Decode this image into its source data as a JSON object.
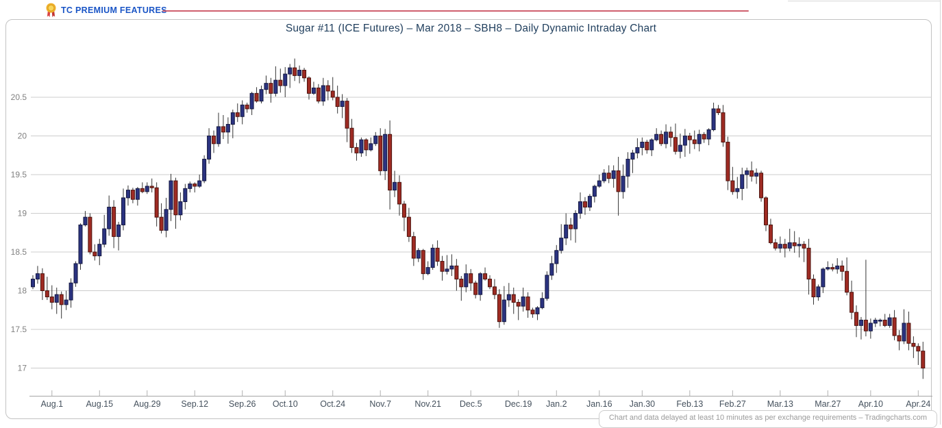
{
  "theme": {
    "premium-blue": "#1a55c6",
    "accent-line": "#cf5f6d",
    "title-navy": "#1e3d5c",
    "frame-border": "#c2c2c2",
    "grid": "#cccccc",
    "axis": "#a5a5a5",
    "tick": "#b0b0b0",
    "x-label": "#44505c",
    "y-label": "#808080",
    "footer-gray": "#9a9a9a",
    "up-fill": "#2b3380",
    "up-stroke": "#141840",
    "down-fill": "#9e2b23",
    "down-stroke": "#4c120d",
    "wick": "#333333"
  },
  "header": {
    "premium_label": "TC PREMIUM FEATURES",
    "badge_icon": "medal-icon"
  },
  "chart": {
    "title": "Sugar #11 (ICE Futures) – Mar 2018 – SBH8 – Daily Dynamic Intraday Chart",
    "footer_note": "Chart and data delayed at least 10 minutes as per exchange requirements – Tradingcharts.com"
  },
  "chart_data": {
    "type": "candlestick",
    "title": "Sugar #11 (ICE Futures) – Mar 2018 – SBH8 – Daily Dynamic Intraday Chart",
    "xlabel": "",
    "ylabel": "",
    "ylim": [
      16.64,
      21.0
    ],
    "grid": "horizontal",
    "up_color": "#2b3380",
    "down_color": "#9e2b23",
    "y_ticks": [
      {
        "label": "20.5",
        "value": 20.5
      },
      {
        "label": "20",
        "value": 20.0
      },
      {
        "label": "19.5",
        "value": 19.5
      },
      {
        "label": "19",
        "value": 19.0
      },
      {
        "label": "18.5",
        "value": 18.5
      },
      {
        "label": "18",
        "value": 18.0
      },
      {
        "label": "17.5",
        "value": 17.5
      },
      {
        "label": "17",
        "value": 17.0
      }
    ],
    "x_ticks": [
      {
        "label": "Aug.1",
        "index": 4
      },
      {
        "label": "Aug.15",
        "index": 14
      },
      {
        "label": "Aug.29",
        "index": 24
      },
      {
        "label": "Sep.12",
        "index": 34
      },
      {
        "label": "Sep.26",
        "index": 44
      },
      {
        "label": "Oct.10",
        "index": 53
      },
      {
        "label": "Oct.24",
        "index": 63
      },
      {
        "label": "Nov.7",
        "index": 73
      },
      {
        "label": "Nov.21",
        "index": 83
      },
      {
        "label": "Dec.5",
        "index": 92
      },
      {
        "label": "Dec.19",
        "index": 102
      },
      {
        "label": "Jan.2",
        "index": 110
      },
      {
        "label": "Jan.16",
        "index": 119
      },
      {
        "label": "Jan.30",
        "index": 128
      },
      {
        "label": "Feb.13",
        "index": 138
      },
      {
        "label": "Feb.27",
        "index": 147
      },
      {
        "label": "Mar.13",
        "index": 157
      },
      {
        "label": "Mar.27",
        "index": 167
      },
      {
        "label": "Apr.10",
        "index": 176
      },
      {
        "label": "Apr.24",
        "index": 186
      }
    ],
    "first_open": 18.05,
    "closes": [
      18.15,
      18.22,
      18.0,
      17.92,
      17.85,
      17.95,
      17.82,
      17.88,
      18.1,
      18.35,
      18.85,
      18.95,
      18.5,
      18.45,
      18.6,
      18.8,
      19.08,
      18.7,
      18.85,
      19.2,
      19.3,
      19.18,
      19.32,
      19.28,
      19.35,
      19.33,
      18.95,
      18.78,
      19.05,
      19.42,
      18.98,
      19.15,
      19.32,
      19.38,
      19.35,
      19.42,
      19.7,
      20.0,
      19.9,
      20.12,
      20.05,
      20.15,
      20.3,
      20.25,
      20.4,
      20.35,
      20.55,
      20.45,
      20.6,
      20.68,
      20.55,
      20.72,
      20.65,
      20.8,
      20.88,
      20.78,
      20.85,
      20.75,
      20.55,
      20.62,
      20.45,
      20.65,
      20.58,
      20.5,
      20.38,
      20.45,
      20.1,
      19.85,
      19.78,
      19.95,
      19.82,
      19.9,
      20.0,
      19.55,
      20.02,
      19.3,
      19.4,
      19.12,
      18.95,
      18.7,
      18.42,
      18.52,
      18.22,
      18.3,
      18.55,
      18.38,
      18.25,
      18.28,
      18.32,
      18.15,
      18.05,
      18.22,
      18.1,
      17.95,
      18.22,
      18.15,
      18.05,
      17.95,
      17.6,
      17.88,
      17.95,
      17.85,
      17.8,
      17.92,
      17.75,
      17.7,
      17.78,
      17.9,
      18.2,
      18.35,
      18.52,
      18.68,
      18.85,
      18.8,
      19.0,
      19.15,
      19.08,
      19.22,
      19.35,
      19.42,
      19.52,
      19.45,
      19.55,
      19.28,
      19.48,
      19.7,
      19.78,
      19.85,
      19.92,
      19.82,
      19.95,
      20.02,
      19.9,
      20.05,
      19.98,
      19.8,
      19.88,
      20.0,
      19.95,
      19.9,
      20.02,
      19.96,
      20.08,
      20.35,
      20.3,
      19.92,
      19.42,
      19.28,
      19.32,
      19.5,
      19.55,
      19.48,
      19.52,
      19.2,
      18.85,
      18.62,
      18.55,
      18.6,
      18.55,
      18.62,
      18.58,
      18.6,
      18.55,
      18.15,
      17.92,
      18.05,
      18.28,
      18.3,
      18.28,
      18.32,
      18.25,
      17.98,
      17.72,
      17.55,
      17.62,
      17.48,
      17.58,
      17.62,
      17.62,
      17.55,
      17.65,
      17.42,
      17.35,
      17.58,
      17.32,
      17.28,
      17.22,
      17.0
    ],
    "wick_pattern": [
      0.05,
      0.12,
      0.07,
      0.03,
      0.15,
      0.08,
      0.04,
      0.1,
      0.06,
      0.18,
      0.02,
      0.09
    ],
    "wick_overrides": {
      "54": {
        "high": 20.93
      },
      "75": {
        "low": 19.05
      },
      "98": {
        "low": 17.52
      },
      "123": {
        "low": 18.97
      },
      "163": {
        "low": 17.95
      },
      "175": {
        "high": 18.4
      },
      "187": {
        "low": 16.86
      }
    }
  }
}
